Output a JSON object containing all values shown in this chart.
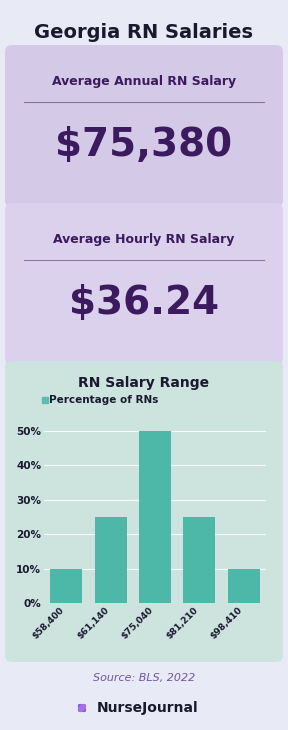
{
  "title": "Georgia RN Salaries",
  "annual_label": "Average Annual RN Salary",
  "annual_value": "$75,380",
  "hourly_label": "Average Hourly RN Salary",
  "hourly_value": "$36.24",
  "chart_title": "RN Salary Range",
  "legend_label": "Percentage of RNs",
  "legend_dot_color": "#5bbcb0",
  "categories": [
    "$58,400",
    "$61,140",
    "$75,040",
    "$81,210",
    "$98,410"
  ],
  "values": [
    10,
    25,
    50,
    25,
    10
  ],
  "bar_color": "#4db8a8",
  "bg_color": "#e8eaf5",
  "card1_color": "#d5c9e8",
  "card2_color": "#dbd1ec",
  "chart_bg_color": "#cce3de",
  "title_color": "#1a1a2e",
  "card_text_color": "#3b1a5e",
  "source_text": "Source: BLS, 2022",
  "source_color": "#7054a0",
  "nj_text": "NurseJournal",
  "nj_color": "#1a1a2e",
  "ytick_labels": [
    "0%",
    "10%",
    "20%",
    "30%",
    "40%",
    "50%"
  ],
  "ytick_values": [
    0,
    10,
    20,
    30,
    40,
    50
  ],
  "fig_w": 2.88,
  "fig_h": 7.3,
  "dpi": 100
}
